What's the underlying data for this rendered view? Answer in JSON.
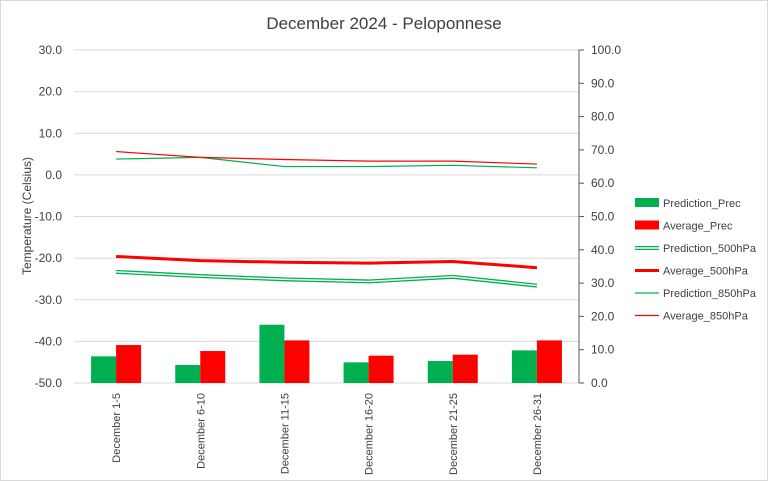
{
  "chart_data": {
    "type": "bar",
    "title": "December 2024 - Peloponnese",
    "xlabel": "",
    "ylabel": "Temperature (Celsius)",
    "y2label": "",
    "categories": [
      "December 1-5",
      "December 6-10",
      "December 11-15",
      "December 16-20",
      "December 21-25",
      "December 26-31"
    ],
    "ylim": [
      -50,
      30
    ],
    "y2lim": [
      0,
      100
    ],
    "yticks": [
      "30.0",
      "20.0",
      "10.0",
      "0.0",
      "-10.0",
      "-20.0",
      "-30.0",
      "-40.0",
      "-50.0"
    ],
    "y2ticks": [
      "100.0",
      "90.0",
      "80.0",
      "70.0",
      "60.0",
      "50.0",
      "40.0",
      "30.0",
      "20.0",
      "10.0",
      "0.0"
    ],
    "grid": true,
    "legend_position": "right",
    "series": [
      {
        "name": "Prediction_Prec",
        "kind": "bar",
        "axis": "right",
        "color": "#00b050",
        "values": [
          8.0,
          5.4,
          17.5,
          6.2,
          6.6,
          9.8
        ]
      },
      {
        "name": "Average_Prec",
        "kind": "bar",
        "axis": "right",
        "color": "#ff0000",
        "values": [
          11.4,
          9.6,
          12.8,
          8.2,
          8.5,
          12.8
        ]
      },
      {
        "name": "Prediction_500hPa",
        "kind": "line",
        "style": "double",
        "axis": "left",
        "color": "#00b050",
        "values": [
          -23.3,
          -24.3,
          -25.1,
          -25.6,
          -24.5,
          -26.6
        ]
      },
      {
        "name": "Average_500hPa",
        "kind": "line",
        "style": "thick",
        "axis": "left",
        "color": "#ff0000",
        "values": [
          -19.6,
          -20.6,
          -21.0,
          -21.2,
          -20.8,
          -22.3
        ]
      },
      {
        "name": "Prediction_850hPa",
        "kind": "line",
        "style": "thin",
        "axis": "left",
        "color": "#00b050",
        "values": [
          3.8,
          4.2,
          2.0,
          2.0,
          2.3,
          1.7
        ]
      },
      {
        "name": "Average_850hPa",
        "kind": "line",
        "style": "thin",
        "axis": "left",
        "color": "#ff0000",
        "values": [
          5.6,
          4.2,
          3.7,
          3.3,
          3.3,
          2.6
        ]
      }
    ]
  }
}
